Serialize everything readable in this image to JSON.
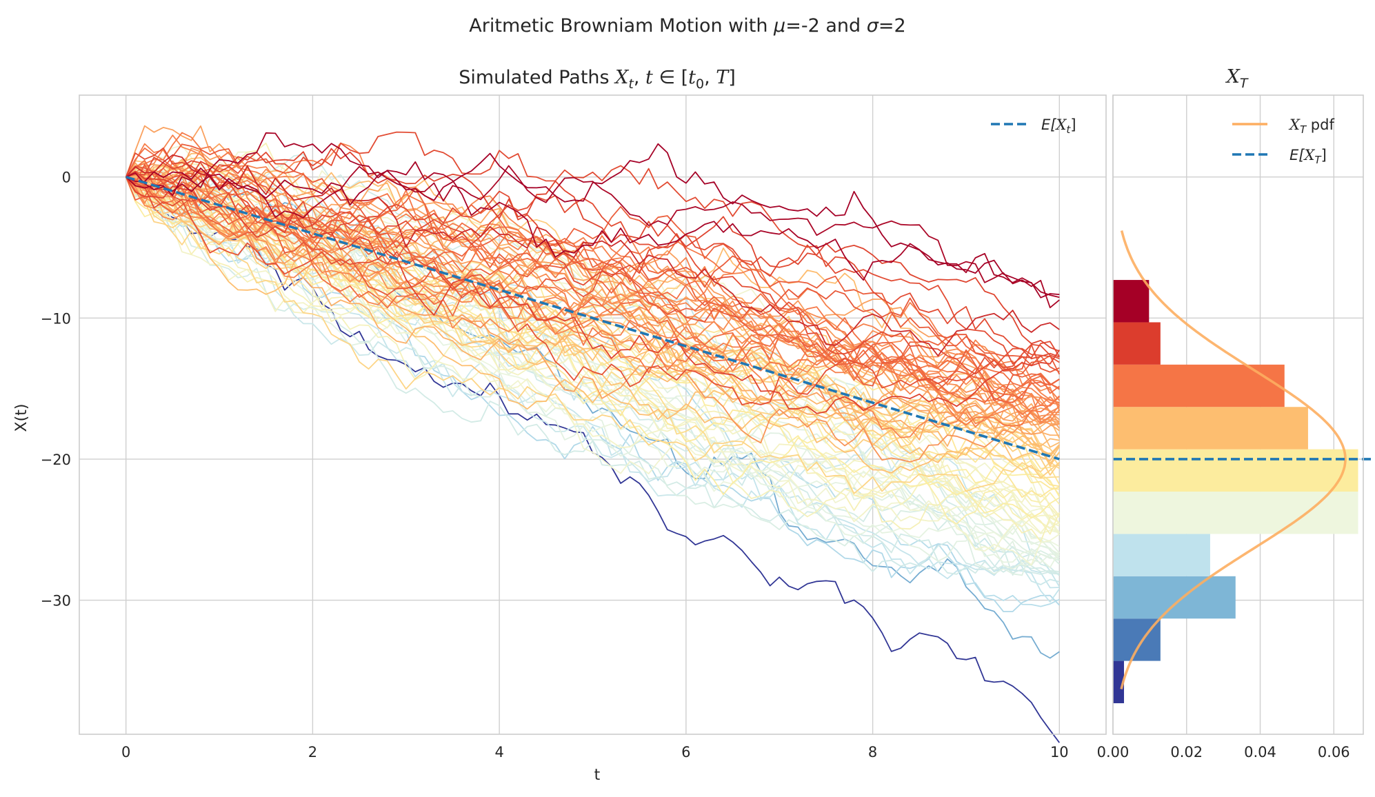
{
  "figure": {
    "suptitle": {
      "pre": "Aritmetic Browniam Motion with ",
      "mu_sym": "μ",
      "mid": "=-2 and ",
      "sigma_sym": "σ",
      "post": "=2"
    }
  },
  "chart_data": [
    {
      "type": "line",
      "title": {
        "pre": "Simulated Paths ",
        "X": "X",
        "t_sub": "t",
        "rest1": ", ",
        "t": "t",
        "in": " ∈ [",
        "t0": "t",
        "zero": "0",
        "comma": ", ",
        "T": "T",
        "close": "]"
      },
      "xlabel": "t",
      "ylabel": "X(t)",
      "xlim": [
        -0.5,
        10.5
      ],
      "ylim": [
        -39.5,
        5.8
      ],
      "x_ticks": [
        "0",
        "2",
        "4",
        "6",
        "8",
        "10"
      ],
      "y_ticks": [
        "0",
        "−10",
        "−20",
        "−30"
      ],
      "parameters_from_title": {
        "mu": -2,
        "sigma": 2
      },
      "t_start": 0,
      "t_end": 10,
      "steps": 100,
      "num_paths": 100,
      "x0": 0,
      "colormap": "RdYlBu",
      "expected_value_line": {
        "x": [
          0,
          10
        ],
        "y": [
          0,
          -20
        ],
        "color": "#1f77b4",
        "style": "dashed"
      },
      "legend": {
        "position": "top-right",
        "entries": [
          {
            "label_pre": "E[",
            "label_X": "X",
            "label_sub": "t",
            "label_post": "]",
            "color": "#1f77b4",
            "style": "dashed"
          }
        ]
      },
      "grid": true
    },
    {
      "type": "bar",
      "orientation": "horizontal",
      "title": {
        "X": "X",
        "sub": "T"
      },
      "xlim": [
        0,
        0.068
      ],
      "ylim": [
        -39.5,
        5.8
      ],
      "x_ticks": [
        "0.00",
        "0.02",
        "0.04",
        "0.06"
      ],
      "x_tick_values": [
        0,
        0.02,
        0.04,
        0.06
      ],
      "bins": [
        {
          "y0": -37.3,
          "y1": -34.3,
          "density": 0.003,
          "color": "#313695"
        },
        {
          "y0": -34.3,
          "y1": -31.3,
          "density": 0.0129,
          "color": "#4a7ab7"
        },
        {
          "y0": -31.3,
          "y1": -28.3,
          "density": 0.0333,
          "color": "#7eb6d6"
        },
        {
          "y0": -28.3,
          "y1": -25.3,
          "density": 0.0264,
          "color": "#bfe2ed"
        },
        {
          "y0": -25.3,
          "y1": -22.3,
          "density": 0.0666,
          "color": "#eef6de"
        },
        {
          "y0": -22.3,
          "y1": -19.3,
          "density": 0.0666,
          "color": "#fcec9e"
        },
        {
          "y0": -19.3,
          "y1": -16.3,
          "density": 0.053,
          "color": "#fdbe70"
        },
        {
          "y0": -16.3,
          "y1": -13.3,
          "density": 0.0466,
          "color": "#f57546"
        },
        {
          "y0": -13.3,
          "y1": -10.3,
          "density": 0.0129,
          "color": "#dc3d2d"
        },
        {
          "y0": -10.3,
          "y1": -7.3,
          "density": 0.0098,
          "color": "#a50026"
        }
      ],
      "pdf_curve": {
        "mean": -20,
        "std": 6.32,
        "y_range": [
          -36.3,
          -3.8
        ],
        "color": "#fdae61"
      },
      "expected_value_line": {
        "y": -20,
        "color": "#1f77b4",
        "style": "dashed"
      },
      "legend": {
        "position": "top-right",
        "entries": [
          {
            "label_X": "X",
            "label_sub": "T",
            "label_post": " pdf",
            "color": "#fdae61",
            "style": "solid"
          },
          {
            "label_pre": "E[",
            "label_X": "X",
            "label_sub": "T",
            "label_post": "]",
            "color": "#1f77b4",
            "style": "dashed"
          }
        ]
      },
      "grid": true
    }
  ]
}
